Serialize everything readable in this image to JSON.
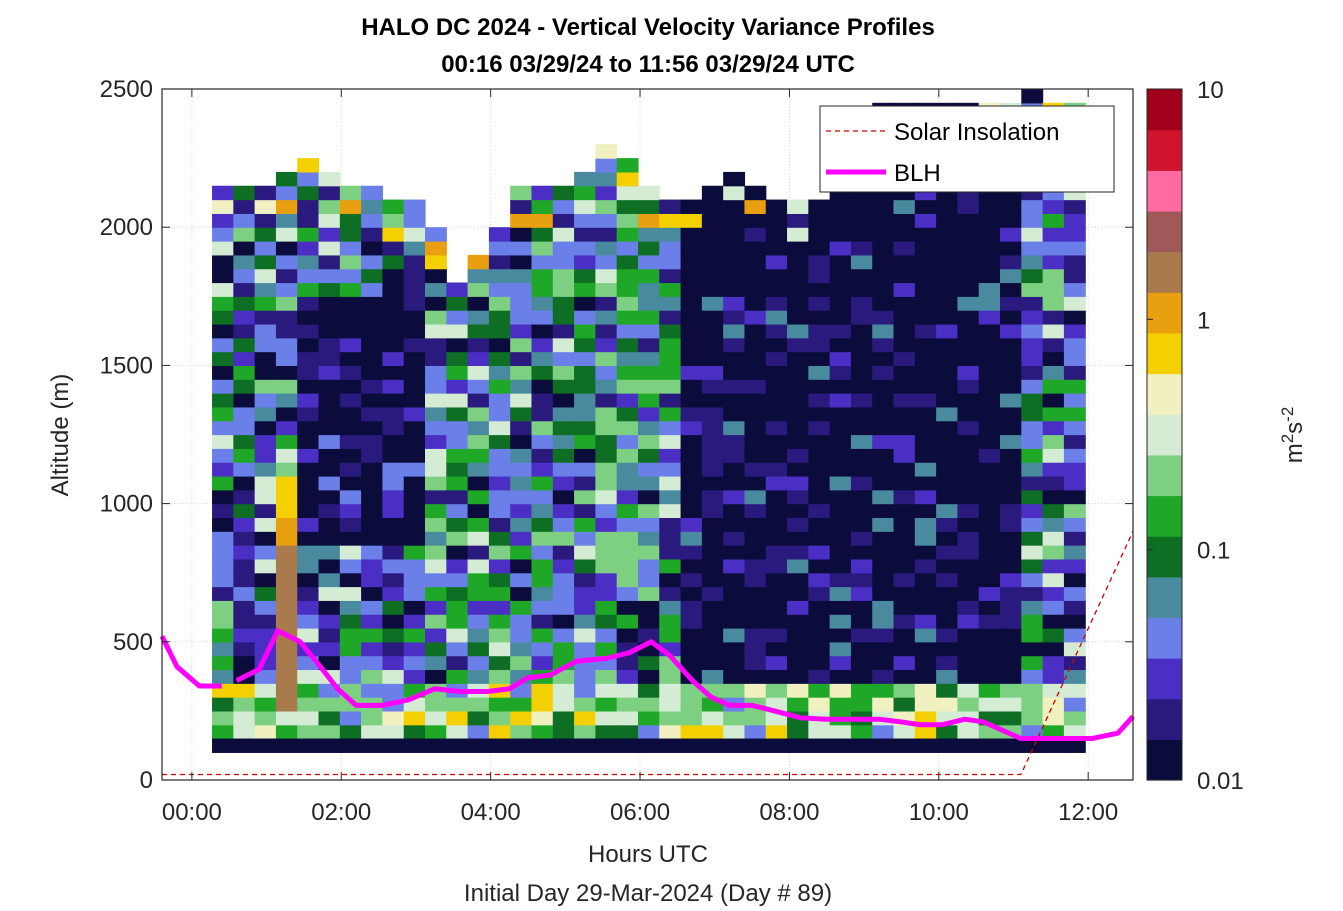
{
  "chart_data": {
    "type": "heatmap",
    "title": "HALO DC 2024 - Vertical Velocity Variance Profiles",
    "subtitle": "00:16 03/29/24 to 11:56 03/29/24  UTC",
    "xlabel": "Hours UTC",
    "xlabel2": "Initial Day 29-Mar-2024 (Day # 89)",
    "ylabel": "Altitude (m)",
    "xlim": [
      -0.4,
      12.6
    ],
    "ylim": [
      0,
      2500
    ],
    "x_ticks": [
      0,
      2,
      4,
      6,
      8,
      10,
      12
    ],
    "x_tick_labels": [
      "00:00",
      "02:00",
      "04:00",
      "06:00",
      "08:00",
      "10:00",
      "12:00"
    ],
    "y_ticks": [
      0,
      500,
      1000,
      1500,
      2000,
      2500
    ],
    "y_tick_labels": [
      "0",
      "500",
      "1000",
      "1500",
      "2000",
      "2500"
    ],
    "grid": true,
    "colorbar": {
      "label": "m",
      "label_sup1": "2",
      "label_mid": "s",
      "label_sup2": "-2",
      "scale": "log",
      "range": [
        0.01,
        10
      ],
      "tick_labels": [
        "0.01",
        "0.1",
        "1",
        "10"
      ],
      "colors": [
        "#0b0c3c",
        "#2b1a7e",
        "#4b2fc4",
        "#6b7fe8",
        "#4a8a9e",
        "#0d6e24",
        "#1fa828",
        "#7dd081",
        "#d4ecd4",
        "#f0f0c0",
        "#f5d000",
        "#e8a010",
        "#a87a4c",
        "#a05858",
        "#ff6aa0",
        "#d0142e",
        "#a0001c"
      ]
    },
    "legend": {
      "placement": "top-right",
      "entries": [
        {
          "label": "Solar Insolation",
          "color": "#d00000",
          "style": "dashed"
        },
        {
          "label": "BLH",
          "color": "#ff00ff",
          "style": "solid"
        }
      ]
    },
    "heatmap": {
      "x_start": 0.27,
      "x_end": 11.96,
      "alt_step": 50,
      "bottom_row_alt": [
        100,
        150
      ],
      "bottom_row_value": 0.01
    },
    "series": [
      {
        "name": "BLH",
        "segments": [
          {
            "x": [
              -0.4,
              -0.2,
              0.1,
              0.4
            ],
            "y": [
              520,
              410,
              340,
              340
            ]
          },
          {
            "x": [
              0.6,
              0.9,
              1.15,
              1.45,
              1.75,
              1.95,
              2.2,
              2.55,
              2.9,
              3.25,
              3.6,
              3.95,
              4.25,
              4.5,
              4.8,
              5.15,
              5.55,
              5.85,
              6.15,
              6.4,
              6.7,
              6.95,
              7.2,
              7.5,
              7.8,
              8.15,
              8.5,
              8.85,
              9.2,
              9.5,
              9.75,
              10.05,
              10.35,
              10.6,
              10.85,
              11.1,
              11.3,
              11.6,
              12.05,
              12.4,
              12.6
            ],
            "y": [
              360,
              400,
              540,
              500,
              400,
              330,
              270,
              270,
              290,
              330,
              320,
              320,
              330,
              370,
              380,
              430,
              440,
              460,
              500,
              450,
              360,
              300,
              270,
              270,
              250,
              225,
              220,
              220,
              220,
              210,
              200,
              200,
              220,
              210,
              180,
              150,
              150,
              150,
              150,
              170,
              230
            ]
          }
        ]
      },
      {
        "name": "Solar Insolation",
        "x": [
          -0.4,
          11.1,
          12.6
        ],
        "y": [
          20,
          20,
          900
        ]
      }
    ]
  }
}
